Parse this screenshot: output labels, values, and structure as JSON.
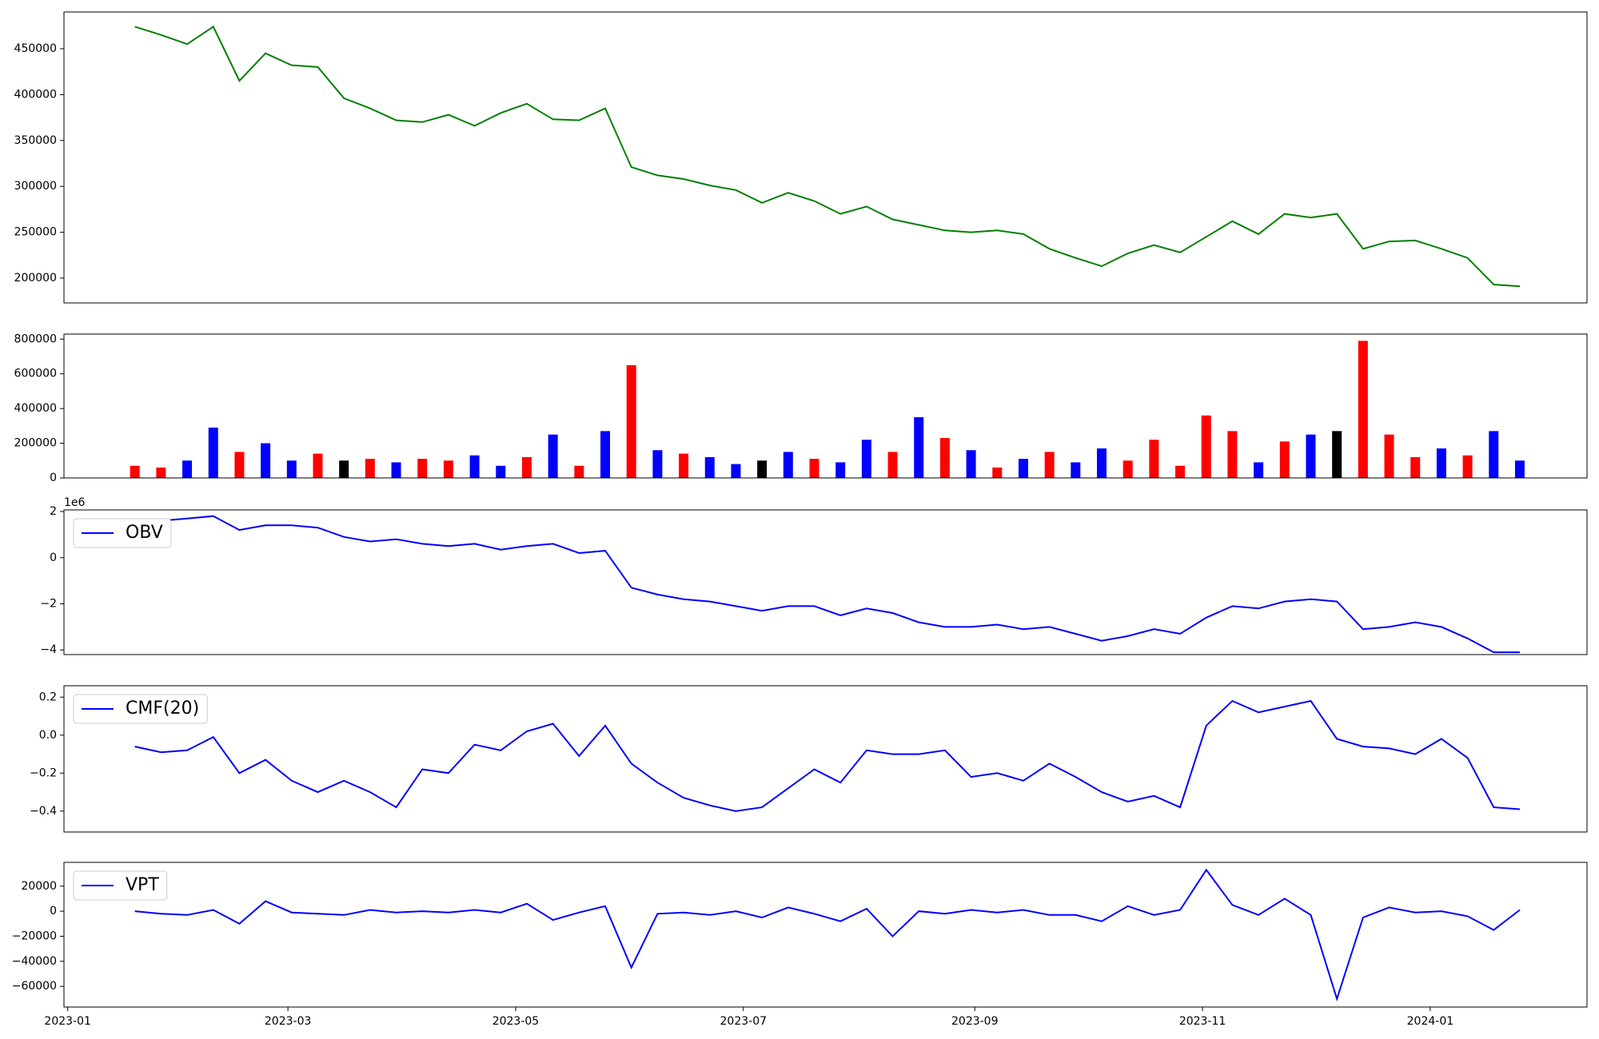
{
  "chart_data": [
    {
      "type": "line",
      "xlim": [
        "2022-12-31",
        "2024-02-12"
      ],
      "x": [
        "2023-01-19",
        "2023-01-26",
        "2023-02-02",
        "2023-02-09",
        "2023-02-16",
        "2023-02-23",
        "2023-03-02",
        "2023-03-09",
        "2023-03-16",
        "2023-03-23",
        "2023-03-30",
        "2023-04-06",
        "2023-04-13",
        "2023-04-20",
        "2023-04-27",
        "2023-05-04",
        "2023-05-11",
        "2023-05-18",
        "2023-05-25",
        "2023-06-01",
        "2023-06-08",
        "2023-06-15",
        "2023-06-22",
        "2023-06-29",
        "2023-07-06",
        "2023-07-13",
        "2023-07-20",
        "2023-07-27",
        "2023-08-03",
        "2023-08-10",
        "2023-08-17",
        "2023-08-24",
        "2023-08-31",
        "2023-09-07",
        "2023-09-14",
        "2023-09-21",
        "2023-09-28",
        "2023-10-05",
        "2023-10-12",
        "2023-10-19",
        "2023-10-26",
        "2023-11-02",
        "2023-11-09",
        "2023-11-16",
        "2023-11-23",
        "2023-11-30",
        "2023-12-07",
        "2023-12-14",
        "2023-12-21",
        "2023-12-28",
        "2024-01-04",
        "2024-01-11",
        "2024-01-18",
        "2024-01-25"
      ],
      "series": [
        {
          "color": "green",
          "values": [
            474000,
            465000,
            455000,
            474000,
            415000,
            445000,
            432000,
            430000,
            396000,
            385000,
            372000,
            370000,
            378000,
            366000,
            380000,
            390000,
            373000,
            372000,
            385000,
            321000,
            312000,
            308000,
            301000,
            296000,
            282000,
            293000,
            284000,
            270000,
            278000,
            264000,
            258000,
            252000,
            250000,
            252000,
            248000,
            232000,
            222000,
            213000,
            227000,
            236000,
            228000,
            245000,
            262000,
            248000,
            270000,
            266000,
            270000,
            232000,
            240000,
            241000,
            232000,
            222000,
            193000,
            191000
          ]
        }
      ],
      "ylim": [
        173000,
        490000
      ],
      "yticks": [
        200000,
        250000,
        300000,
        350000,
        400000,
        450000
      ]
    },
    {
      "type": "bar",
      "xlim": [
        "2022-12-31",
        "2024-02-12"
      ],
      "x": [
        "2023-01-19",
        "2023-01-26",
        "2023-02-02",
        "2023-02-09",
        "2023-02-16",
        "2023-02-23",
        "2023-03-02",
        "2023-03-09",
        "2023-03-16",
        "2023-03-23",
        "2023-03-30",
        "2023-04-06",
        "2023-04-13",
        "2023-04-20",
        "2023-04-27",
        "2023-05-04",
        "2023-05-11",
        "2023-05-18",
        "2023-05-25",
        "2023-06-01",
        "2023-06-08",
        "2023-06-15",
        "2023-06-22",
        "2023-06-29",
        "2023-07-06",
        "2023-07-13",
        "2023-07-20",
        "2023-07-27",
        "2023-08-03",
        "2023-08-10",
        "2023-08-17",
        "2023-08-24",
        "2023-08-31",
        "2023-09-07",
        "2023-09-14",
        "2023-09-21",
        "2023-09-28",
        "2023-10-05",
        "2023-10-12",
        "2023-10-19",
        "2023-10-26",
        "2023-11-02",
        "2023-11-09",
        "2023-11-16",
        "2023-11-23",
        "2023-11-30",
        "2023-12-07",
        "2023-12-14",
        "2023-12-21",
        "2023-12-28",
        "2024-01-04",
        "2024-01-11",
        "2024-01-18",
        "2024-01-25"
      ],
      "series": [
        {
          "values": [
            70000,
            60000,
            100000,
            290000,
            150000,
            200000,
            100000,
            140000,
            100000,
            110000,
            90000,
            110000,
            100000,
            130000,
            70000,
            120000,
            250000,
            70000,
            270000,
            650000,
            160000,
            140000,
            120000,
            80000,
            100000,
            150000,
            110000,
            90000,
            220000,
            150000,
            350000,
            230000,
            160000,
            60000,
            110000,
            150000,
            90000,
            170000,
            100000,
            220000,
            70000,
            360000,
            270000,
            90000,
            210000,
            250000,
            270000,
            790000,
            250000,
            120000,
            170000,
            130000,
            270000,
            100000
          ],
          "colors": [
            "red",
            "red",
            "blue",
            "blue",
            "red",
            "blue",
            "blue",
            "red",
            "black",
            "red",
            "blue",
            "red",
            "red",
            "blue",
            "blue",
            "red",
            "blue",
            "red",
            "blue",
            "red",
            "blue",
            "red",
            "blue",
            "blue",
            "black",
            "blue",
            "red",
            "blue",
            "blue",
            "red",
            "blue",
            "red",
            "blue",
            "red",
            "blue",
            "red",
            "blue",
            "blue",
            "red",
            "red",
            "red",
            "red",
            "red",
            "blue",
            "red",
            "blue",
            "black",
            "red",
            "red",
            "red",
            "blue",
            "red",
            "blue",
            "blue"
          ]
        }
      ],
      "ylim": [
        0,
        829000
      ],
      "yticks": [
        0,
        200000,
        400000,
        600000,
        800000
      ]
    },
    {
      "type": "line",
      "xlim": [
        "2022-12-31",
        "2024-02-12"
      ],
      "legend": "upper left",
      "y_offset_label": "1e6",
      "x": [
        "2023-01-19",
        "2023-01-26",
        "2023-02-02",
        "2023-02-09",
        "2023-02-16",
        "2023-02-23",
        "2023-03-02",
        "2023-03-09",
        "2023-03-16",
        "2023-03-23",
        "2023-03-30",
        "2023-04-06",
        "2023-04-13",
        "2023-04-20",
        "2023-04-27",
        "2023-05-04",
        "2023-05-11",
        "2023-05-18",
        "2023-05-25",
        "2023-06-01",
        "2023-06-08",
        "2023-06-15",
        "2023-06-22",
        "2023-06-29",
        "2023-07-06",
        "2023-07-13",
        "2023-07-20",
        "2023-07-27",
        "2023-08-03",
        "2023-08-10",
        "2023-08-17",
        "2023-08-24",
        "2023-08-31",
        "2023-09-07",
        "2023-09-14",
        "2023-09-21",
        "2023-09-28",
        "2023-10-05",
        "2023-10-12",
        "2023-10-19",
        "2023-10-26",
        "2023-11-02",
        "2023-11-09",
        "2023-11-16",
        "2023-11-23",
        "2023-11-30",
        "2023-12-07",
        "2023-12-14",
        "2023-12-21",
        "2023-12-28",
        "2024-01-04",
        "2024-01-11",
        "2024-01-18",
        "2024-01-25"
      ],
      "series": [
        {
          "name": "OBV",
          "color": "blue",
          "values": [
            1600000,
            1600000,
            1700000,
            1800000,
            1200000,
            1400000,
            1400000,
            1300000,
            900000,
            700000,
            800000,
            600000,
            500000,
            600000,
            350000,
            500000,
            600000,
            200000,
            300000,
            -1300000,
            -1600000,
            -1800000,
            -1900000,
            -2100000,
            -2300000,
            -2100000,
            -2100000,
            -2500000,
            -2200000,
            -2400000,
            -2800000,
            -3000000,
            -3000000,
            -2900000,
            -3100000,
            -3000000,
            -3300000,
            -3600000,
            -3400000,
            -3100000,
            -3300000,
            -2600000,
            -2100000,
            -2200000,
            -1900000,
            -1800000,
            -1900000,
            -3100000,
            -3000000,
            -2800000,
            -3000000,
            -3500000,
            -4100000,
            -4100000
          ]
        }
      ],
      "ylim": [
        -4200000,
        2070000
      ],
      "yticks": [
        {
          "value": -4000000,
          "label": "−4"
        },
        {
          "value": -2000000,
          "label": "−2"
        },
        0,
        {
          "value": 2000000,
          "label": "2"
        }
      ]
    },
    {
      "type": "line",
      "xlim": [
        "2022-12-31",
        "2024-02-12"
      ],
      "legend": "upper left",
      "x": [
        "2023-01-19",
        "2023-01-26",
        "2023-02-02",
        "2023-02-09",
        "2023-02-16",
        "2023-02-23",
        "2023-03-02",
        "2023-03-09",
        "2023-03-16",
        "2023-03-23",
        "2023-03-30",
        "2023-04-06",
        "2023-04-13",
        "2023-04-20",
        "2023-04-27",
        "2023-05-04",
        "2023-05-11",
        "2023-05-18",
        "2023-05-25",
        "2023-06-01",
        "2023-06-08",
        "2023-06-15",
        "2023-06-22",
        "2023-06-29",
        "2023-07-06",
        "2023-07-13",
        "2023-07-20",
        "2023-07-27",
        "2023-08-03",
        "2023-08-10",
        "2023-08-17",
        "2023-08-24",
        "2023-08-31",
        "2023-09-07",
        "2023-09-14",
        "2023-09-21",
        "2023-09-28",
        "2023-10-05",
        "2023-10-12",
        "2023-10-19",
        "2023-10-26",
        "2023-11-02",
        "2023-11-09",
        "2023-11-16",
        "2023-11-23",
        "2023-11-30",
        "2023-12-07",
        "2023-12-14",
        "2023-12-21",
        "2023-12-28",
        "2024-01-04",
        "2024-01-11",
        "2024-01-18",
        "2024-01-25"
      ],
      "series": [
        {
          "name": "CMF(20)",
          "color": "blue",
          "values": [
            -0.06,
            -0.09,
            -0.08,
            -0.01,
            -0.2,
            -0.13,
            -0.24,
            -0.3,
            -0.24,
            -0.3,
            -0.38,
            -0.18,
            -0.2,
            -0.05,
            -0.08,
            0.02,
            0.06,
            -0.11,
            0.05,
            -0.15,
            -0.25,
            -0.33,
            -0.37,
            -0.4,
            -0.38,
            -0.28,
            -0.18,
            -0.25,
            -0.08,
            -0.1,
            -0.1,
            -0.08,
            -0.22,
            -0.2,
            -0.24,
            -0.15,
            -0.22,
            -0.3,
            -0.35,
            -0.32,
            -0.38,
            0.05,
            0.18,
            0.12,
            0.15,
            0.18,
            -0.02,
            -0.06,
            -0.07,
            -0.1,
            -0.02,
            -0.12,
            -0.38,
            -0.39
          ]
        }
      ],
      "ylim": [
        -0.51,
        0.26
      ],
      "yticks": [
        {
          "value": -0.4,
          "label": "−0.4"
        },
        {
          "value": -0.2,
          "label": "−0.2"
        },
        {
          "value": 0,
          "label": "0.0"
        },
        0.2
      ]
    },
    {
      "type": "line",
      "xlim": [
        "2022-12-31",
        "2024-02-12"
      ],
      "legend": "upper left",
      "x": [
        "2023-01-19",
        "2023-01-26",
        "2023-02-02",
        "2023-02-09",
        "2023-02-16",
        "2023-02-23",
        "2023-03-02",
        "2023-03-09",
        "2023-03-16",
        "2023-03-23",
        "2023-03-30",
        "2023-04-06",
        "2023-04-13",
        "2023-04-20",
        "2023-04-27",
        "2023-05-04",
        "2023-05-11",
        "2023-05-18",
        "2023-05-25",
        "2023-06-01",
        "2023-06-08",
        "2023-06-15",
        "2023-06-22",
        "2023-06-29",
        "2023-07-06",
        "2023-07-13",
        "2023-07-20",
        "2023-07-27",
        "2023-08-03",
        "2023-08-10",
        "2023-08-17",
        "2023-08-24",
        "2023-08-31",
        "2023-09-07",
        "2023-09-14",
        "2023-09-21",
        "2023-09-28",
        "2023-10-05",
        "2023-10-12",
        "2023-10-19",
        "2023-10-26",
        "2023-11-02",
        "2023-11-09",
        "2023-11-16",
        "2023-11-23",
        "2023-11-30",
        "2023-12-07",
        "2023-12-14",
        "2023-12-21",
        "2023-12-28",
        "2024-01-04",
        "2024-01-11",
        "2024-01-18",
        "2024-01-25"
      ],
      "series": [
        {
          "name": "VPT",
          "color": "blue",
          "values": [
            0,
            -2000,
            -3000,
            1000,
            -10000,
            8000,
            -1000,
            -2000,
            -3000,
            1000,
            -1000,
            0,
            -1000,
            1000,
            -1000,
            6000,
            -7000,
            -1000,
            4000,
            -45000,
            -2000,
            -1000,
            -3000,
            0,
            -5000,
            3000,
            -2000,
            -8000,
            2000,
            -20000,
            0,
            -2000,
            1000,
            -1000,
            1000,
            -3000,
            -3000,
            -8000,
            4000,
            -3000,
            1000,
            33000,
            5000,
            -3000,
            10000,
            -3000,
            -70000,
            -5000,
            3000,
            -1000,
            0,
            -4000,
            -15000,
            1000
          ]
        }
      ],
      "ylim": [
        -76500,
        39000
      ],
      "yticks": [
        {
          "value": -60000,
          "label": "−60000"
        },
        {
          "value": -40000,
          "label": "−40000"
        },
        {
          "value": -20000,
          "label": "−20000"
        },
        0,
        20000
      ],
      "xticks": [
        {
          "value": "2023-01-01",
          "label": "2023-01"
        },
        {
          "value": "2023-03-01",
          "label": "2023-03"
        },
        {
          "value": "2023-05-01",
          "label": "2023-05"
        },
        {
          "value": "2023-07-01",
          "label": "2023-07"
        },
        {
          "value": "2023-09-01",
          "label": "2023-09"
        },
        {
          "value": "2023-11-01",
          "label": "2023-11"
        },
        {
          "value": "2024-01-01",
          "label": "2024-01"
        }
      ]
    }
  ]
}
